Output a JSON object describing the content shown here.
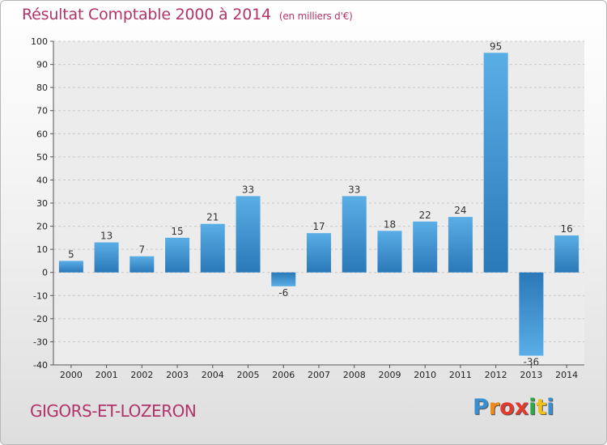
{
  "header": {
    "title": "Résultat Comptable 2000 à 2014",
    "unit": "(en milliers d'€)"
  },
  "footer": {
    "town": "GIGORS-ET-LOZERON",
    "logo_letters": [
      "P",
      "r",
      "o",
      "x",
      "i",
      "t",
      "i"
    ],
    "logo_colors": [
      "#3a8fd1",
      "#f08a1c",
      "#e23b2e",
      "#e23b2e",
      "#2fa84a",
      "#f0c01c",
      "#3a8fd1"
    ]
  },
  "chart_data": {
    "type": "bar",
    "title": "Résultat Comptable 2000 à 2014",
    "subtitle": "(en milliers d'€)",
    "xlabel": "",
    "ylabel": "",
    "categories": [
      "2000",
      "2001",
      "2002",
      "2003",
      "2004",
      "2005",
      "2006",
      "2007",
      "2008",
      "2009",
      "2010",
      "2011",
      "2012",
      "2013",
      "2014"
    ],
    "values": [
      5,
      13,
      7,
      15,
      21,
      33,
      -6,
      17,
      33,
      18,
      22,
      24,
      95,
      -36,
      16
    ],
    "ylim": [
      -40,
      100
    ],
    "yticks": [
      -40,
      -30,
      -20,
      -10,
      0,
      10,
      20,
      30,
      40,
      50,
      60,
      70,
      80,
      90,
      100
    ],
    "grid": true,
    "colors": {
      "bar_light": "#5aaee6",
      "bar_dark": "#2a78b8"
    }
  }
}
